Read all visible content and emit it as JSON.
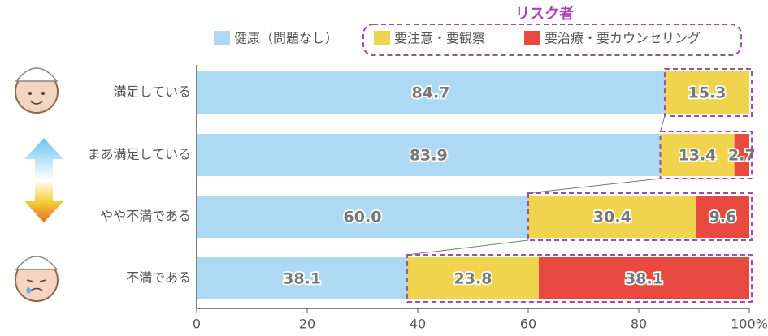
{
  "chart_data": {
    "type": "stacked-bar-horizontal",
    "annotation": "リスク者",
    "categories": [
      "満足している",
      "まあ満足している",
      "やや不満である",
      "不満である"
    ],
    "series": [
      {
        "name": "健康（問題なし）",
        "color": "#aed9f2",
        "values": [
          84.7,
          83.9,
          60.0,
          38.1
        ],
        "value_labels": [
          "84.7",
          "83.9",
          "60.0",
          "38.1"
        ]
      },
      {
        "name": "要注意・要観察",
        "color": "#f0d44e",
        "values": [
          15.3,
          13.4,
          30.4,
          23.8
        ],
        "value_labels": [
          "15.3",
          "13.4",
          "30.4",
          "23.8"
        ]
      },
      {
        "name": "要治療・要カウンセリング",
        "color": "#e84a3f",
        "values": [
          0,
          2.7,
          9.6,
          38.1
        ],
        "value_labels": [
          null,
          "2.7",
          "9.6",
          "38.1"
        ]
      }
    ],
    "xlim": [
      0,
      100
    ],
    "xticks": [
      0,
      20,
      40,
      60,
      80,
      {
        "value": 100,
        "label": "100%"
      }
    ]
  }
}
